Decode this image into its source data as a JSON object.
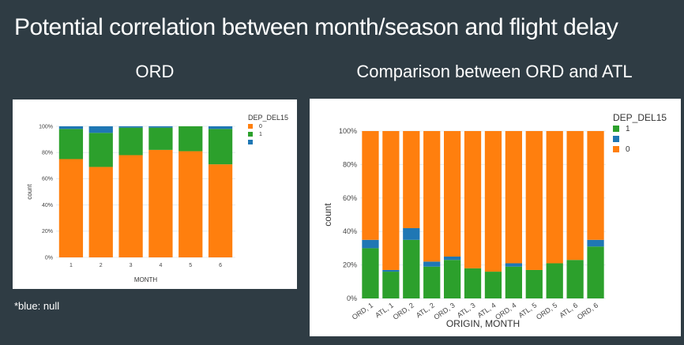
{
  "slide": {
    "title": "Potential correlation between month/season and flight delay",
    "left_heading": "ORD",
    "right_heading": "Comparison between ORD and ATL",
    "note": "*blue: null"
  },
  "colors": {
    "zero": "#ff7f0e",
    "one": "#2ca02c",
    "null": "#1f77b4"
  },
  "chart_data": [
    {
      "type": "bar",
      "stacked": true,
      "xlabel": "MONTH",
      "ylabel": "count",
      "ylim": [
        0,
        100
      ],
      "yticks": [
        "0%",
        "20%",
        "40%",
        "60%",
        "80%",
        "100%"
      ],
      "categories": [
        "1",
        "2",
        "3",
        "4",
        "5",
        "6"
      ],
      "legend": {
        "title": "DEP_DEL15",
        "entries": [
          "0",
          "1",
          ""
        ],
        "placement": "top-right"
      },
      "series": [
        {
          "name": "0",
          "color": "#ff7f0e",
          "values": [
            75,
            69,
            78,
            82,
            81,
            71
          ]
        },
        {
          "name": "1",
          "color": "#2ca02c",
          "values": [
            23,
            26,
            21,
            17,
            19,
            27
          ]
        },
        {
          "name": "",
          "color": "#1f77b4",
          "values": [
            2,
            5,
            1,
            1,
            0,
            2
          ]
        }
      ]
    },
    {
      "type": "bar",
      "stacked": true,
      "xlabel": "ORIGIN, MONTH",
      "ylabel": "count",
      "ylim": [
        0,
        100
      ],
      "yticks": [
        "0%",
        "20%",
        "40%",
        "60%",
        "80%",
        "100%"
      ],
      "categories": [
        "ORD, 1",
        "ATL, 1",
        "ORD, 2",
        "ATL, 2",
        "ORD, 3",
        "ATL, 3",
        "ATL, 4",
        "ORD, 4",
        "ATL, 5",
        "ORD, 5",
        "ATL, 6",
        "ORD, 6"
      ],
      "legend": {
        "title": "DEP_DEL15",
        "entries": [
          "1",
          "",
          "0"
        ],
        "placement": "top-right"
      },
      "series": [
        {
          "name": "1",
          "color": "#2ca02c",
          "values": [
            30,
            16,
            35,
            19,
            23,
            18,
            16,
            19,
            17,
            21,
            23,
            31
          ]
        },
        {
          "name": "",
          "color": "#1f77b4",
          "values": [
            5,
            1,
            7,
            3,
            2,
            0,
            0,
            2,
            0,
            0,
            0,
            4
          ]
        },
        {
          "name": "0",
          "color": "#ff7f0e",
          "values": [
            65,
            83,
            58,
            78,
            75,
            82,
            84,
            79,
            83,
            79,
            77,
            65
          ]
        }
      ]
    }
  ]
}
